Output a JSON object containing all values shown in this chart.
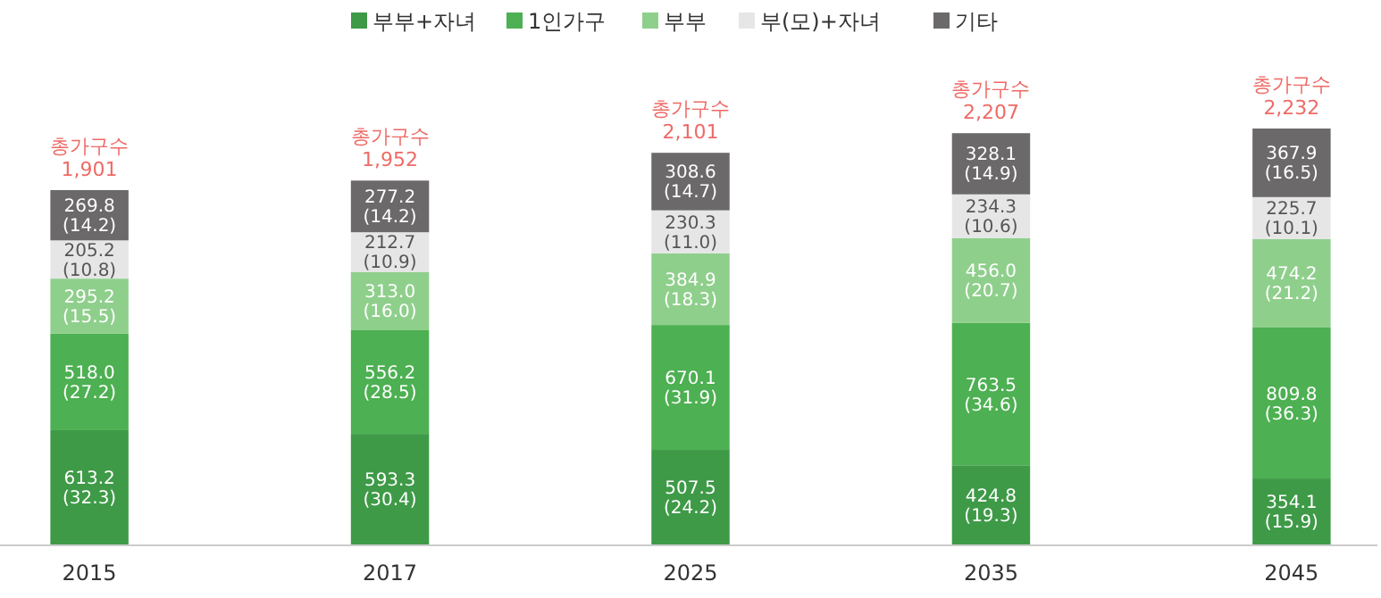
{
  "chart_data": {
    "type": "bar",
    "stacked": true,
    "categories": [
      "2015",
      "2017",
      "2025",
      "2035",
      "2045"
    ],
    "legend": "top",
    "series": [
      {
        "name": "부부+자녀",
        "color": "#3e9a47",
        "values": [
          613.2,
          593.3,
          507.5,
          424.8,
          354.1
        ],
        "value_labels": [
          "613.2\n(32.3)",
          "593.3\n(30.4)",
          "507.5\n(24.2)",
          "424.8\n(19.3)",
          "354.1\n(15.9)"
        ]
      },
      {
        "name": "1인가구",
        "color": "#4db052",
        "values": [
          518.0,
          556.2,
          670.1,
          763.5,
          809.8
        ],
        "value_labels": [
          "518.0\n(27.2)",
          "556.2\n(28.5)",
          "670.1\n(31.9)",
          "763.5\n(34.6)",
          "809.8\n(36.3)"
        ]
      },
      {
        "name": "부부",
        "color": "#8fcf8c",
        "values": [
          295.2,
          313.0,
          384.9,
          456.0,
          474.2
        ],
        "value_labels": [
          "295.2\n(15.5)",
          "313.0\n(16.0)",
          "384.9\n(18.3)",
          "456.0\n(20.7)",
          "474.2\n(21.2)"
        ]
      },
      {
        "name": "부(모)+자녀",
        "color": "#e6e6e6",
        "values": [
          205.2,
          212.7,
          230.3,
          234.3,
          225.7
        ],
        "value_labels": [
          "205.2\n(10.8)",
          "212.7\n(10.9)",
          "230.3\n(11.0)",
          "234.3\n(10.6)",
          "225.7\n(10.1)"
        ]
      },
      {
        "name": "기타",
        "color": "#6b6969",
        "values": [
          269.8,
          277.2,
          308.6,
          328.1,
          367.9
        ],
        "value_labels": [
          "269.8\n(14.2)",
          "277.2\n(14.2)",
          "308.6\n(14.7)",
          "328.1\n(14.9)",
          "367.9\n(16.5)"
        ]
      }
    ],
    "totals": [
      "총가구수\n1,901",
      "총가구수\n1,952",
      "총가구수\n2,101",
      "총가구수\n2,207",
      "총가구수\n2,232"
    ]
  }
}
